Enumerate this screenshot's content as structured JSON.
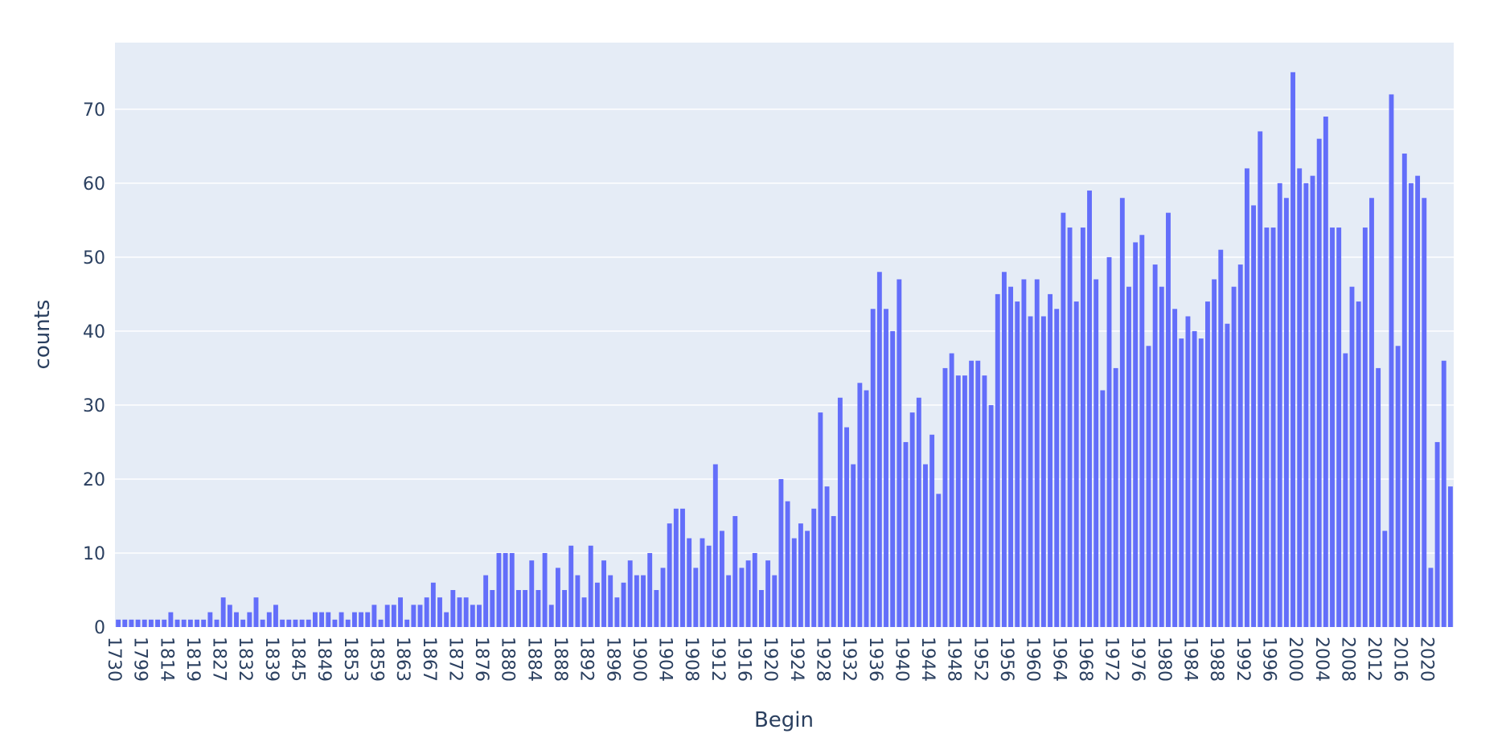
{
  "chart_data": {
    "type": "bar",
    "xlabel": "Begin",
    "ylabel": "counts",
    "ylim": [
      0,
      79
    ],
    "yticks": [
      0,
      10,
      20,
      30,
      40,
      50,
      60,
      70
    ],
    "grid": true,
    "bar_color": "#636efa",
    "plot_bg": "#e5ecf6",
    "x_tick_labels": [
      "1730",
      "1799",
      "1814",
      "1819",
      "1827",
      "1832",
      "1839",
      "1845",
      "1849",
      "1853",
      "1859",
      "1863",
      "1867",
      "1872",
      "1876",
      "1880",
      "1884",
      "1888",
      "1892",
      "1896",
      "1900",
      "1904",
      "1908",
      "1912",
      "1916",
      "1920",
      "1924",
      "1928",
      "1932",
      "1936",
      "1940",
      "1944",
      "1948",
      "1952",
      "1956",
      "1960",
      "1964",
      "1968",
      "1972",
      "1976",
      "1980",
      "1984",
      "1988",
      "1992",
      "1996",
      "2000",
      "2004",
      "2008",
      "2012",
      "2016",
      "2020"
    ],
    "values": [
      1,
      1,
      1,
      1,
      1,
      1,
      1,
      1,
      2,
      1,
      1,
      1,
      1,
      1,
      2,
      1,
      4,
      3,
      2,
      1,
      2,
      4,
      1,
      2,
      3,
      1,
      1,
      1,
      1,
      1,
      2,
      2,
      2,
      1,
      2,
      1,
      2,
      2,
      2,
      3,
      1,
      3,
      3,
      4,
      1,
      3,
      3,
      4,
      6,
      4,
      2,
      5,
      4,
      4,
      3,
      3,
      7,
      5,
      10,
      10,
      10,
      5,
      5,
      9,
      5,
      10,
      3,
      8,
      5,
      11,
      7,
      4,
      11,
      6,
      9,
      7,
      4,
      6,
      9,
      7,
      7,
      10,
      5,
      8,
      14,
      16,
      16,
      12,
      8,
      12,
      11,
      22,
      13,
      7,
      15,
      8,
      9,
      10,
      5,
      9,
      7,
      20,
      17,
      12,
      14,
      13,
      16,
      29,
      19,
      15,
      31,
      27,
      22,
      33,
      32,
      43,
      48,
      43,
      40,
      47,
      25,
      29,
      31,
      22,
      26,
      18,
      35,
      37,
      34,
      34,
      36,
      36,
      34,
      30,
      45,
      48,
      46,
      44,
      47,
      42,
      47,
      42,
      45,
      43,
      56,
      54,
      44,
      54,
      59,
      47,
      32,
      50,
      35,
      58,
      46,
      52,
      53,
      38,
      49,
      46,
      56,
      43,
      39,
      42,
      40,
      39,
      44,
      47,
      51,
      41,
      46,
      49,
      62,
      57,
      67,
      54,
      54,
      60,
      58,
      75,
      62,
      60,
      61,
      66,
      69,
      54,
      54,
      37,
      46,
      44,
      54,
      58,
      35,
      13,
      72,
      38,
      64,
      60,
      61,
      58,
      8,
      25,
      36,
      19
    ]
  }
}
